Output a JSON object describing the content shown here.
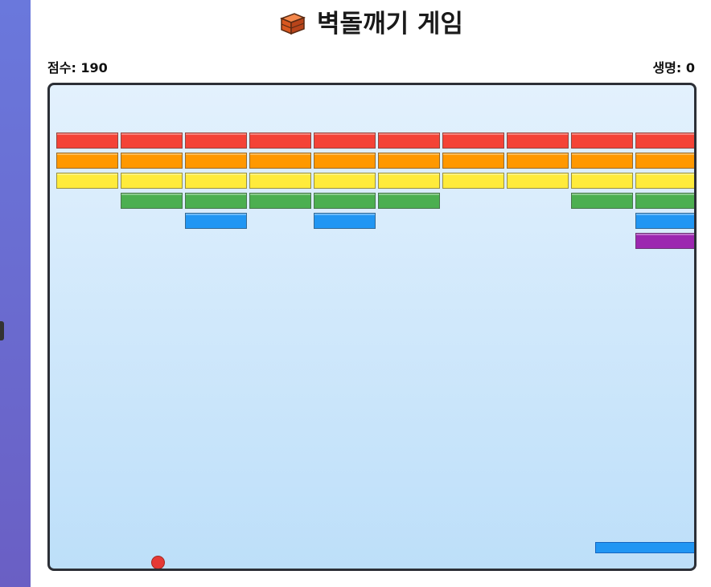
{
  "header": {
    "title_icon": "brick-icon",
    "title": "벽돌깨기 게임"
  },
  "hud": {
    "score_label": "점수: 190",
    "lives_label": "생명: 0"
  },
  "colors": {
    "red": "#f44336",
    "orange": "#ff9800",
    "yellow": "#ffeb3b",
    "green": "#4caf50",
    "blue": "#2196f3",
    "purple": "#9c27b0",
    "paddle": "#2196f3",
    "ball": "#e53935"
  },
  "bricks": [
    {
      "row": 0,
      "color": "red",
      "cols": [
        0,
        1,
        2,
        3,
        4,
        5,
        6,
        7,
        8,
        9
      ]
    },
    {
      "row": 1,
      "color": "orange",
      "cols": [
        0,
        1,
        2,
        3,
        4,
        5,
        6,
        7,
        8,
        9
      ]
    },
    {
      "row": 2,
      "color": "yellow",
      "cols": [
        0,
        1,
        2,
        3,
        4,
        5,
        6,
        7,
        8,
        9
      ]
    },
    {
      "row": 3,
      "color": "green",
      "cols": [
        1,
        2,
        3,
        4,
        5,
        8,
        9
      ]
    },
    {
      "row": 4,
      "color": "blue",
      "cols": [
        2,
        4,
        9
      ]
    },
    {
      "row": 5,
      "color": "purple",
      "cols": [
        9
      ]
    }
  ]
}
